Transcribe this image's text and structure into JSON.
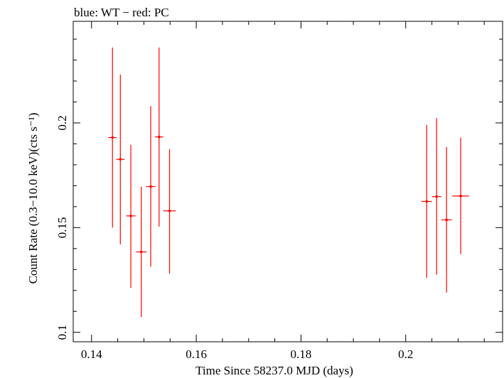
{
  "chart_data": {
    "type": "scatter",
    "title": "blue: WT − red: PC",
    "xlabel": "Time Since 58237.0 MJD (days)",
    "ylabel": "Count Rate (0.3−10.0 keV)(cts s⁻¹)",
    "xlim": [
      0.1365,
      0.2185
    ],
    "ylim": [
      0.0955,
      0.2485
    ],
    "x_ticks": [
      {
        "value": 0.14,
        "label": "0.14"
      },
      {
        "value": 0.16,
        "label": "0.16"
      },
      {
        "value": 0.18,
        "label": "0.18"
      },
      {
        "value": 0.2,
        "label": "0.2"
      }
    ],
    "y_ticks": [
      {
        "value": 0.1,
        "label": "0.1"
      },
      {
        "value": 0.15,
        "label": "0.15"
      },
      {
        "value": 0.2,
        "label": "0.2"
      }
    ],
    "grid": false,
    "series": [
      {
        "name": "PC",
        "color": "#ff0000",
        "points": [
          {
            "x": 0.144,
            "xerr": 0.0008,
            "y": 0.193,
            "ylo": 0.15,
            "yhi": 0.236
          },
          {
            "x": 0.1455,
            "xerr": 0.0008,
            "y": 0.1826,
            "ylo": 0.142,
            "yhi": 0.223
          },
          {
            "x": 0.1475,
            "xerr": 0.0009,
            "y": 0.1556,
            "ylo": 0.1212,
            "yhi": 0.1895
          },
          {
            "x": 0.1495,
            "xerr": 0.001,
            "y": 0.1384,
            "ylo": 0.1073,
            "yhi": 0.1695
          },
          {
            "x": 0.1513,
            "xerr": 0.0009,
            "y": 0.1696,
            "ylo": 0.1313,
            "yhi": 0.208
          },
          {
            "x": 0.1529,
            "xerr": 0.0008,
            "y": 0.1933,
            "ylo": 0.1505,
            "yhi": 0.236
          },
          {
            "x": 0.1549,
            "xerr": 0.0012,
            "y": 0.158,
            "ylo": 0.128,
            "yhi": 0.1875
          },
          {
            "x": 0.204,
            "xerr": 0.001,
            "y": 0.1625,
            "ylo": 0.126,
            "yhi": 0.199
          },
          {
            "x": 0.2059,
            "xerr": 0.0009,
            "y": 0.1648,
            "ylo": 0.1275,
            "yhi": 0.2023
          },
          {
            "x": 0.2078,
            "xerr": 0.001,
            "y": 0.1537,
            "ylo": 0.119,
            "yhi": 0.1885
          },
          {
            "x": 0.2105,
            "xerr": 0.0016,
            "y": 0.1651,
            "ylo": 0.1373,
            "yhi": 0.193
          }
        ]
      }
    ]
  }
}
